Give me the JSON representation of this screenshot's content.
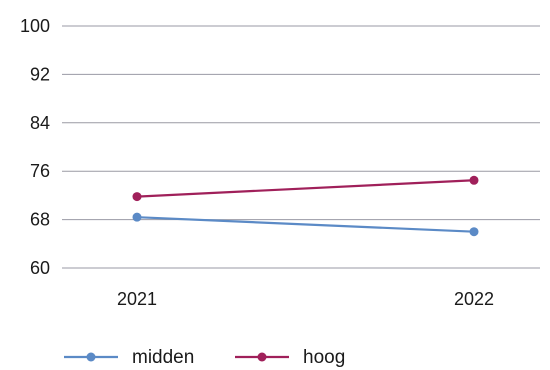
{
  "chart_data": {
    "type": "line",
    "title": "",
    "xlabel": "",
    "ylabel": "",
    "categories": [
      "2021",
      "2022"
    ],
    "ylim": [
      60,
      100
    ],
    "yticks": [
      60,
      68,
      76,
      84,
      92,
      100
    ],
    "grid": true,
    "legend_position": "bottom-left",
    "series": [
      {
        "name": "midden",
        "values": [
          68.4,
          66.0
        ],
        "color": "#5b8ac6"
      },
      {
        "name": "hoog",
        "values": [
          71.8,
          74.5
        ],
        "color": "#a0205a"
      }
    ]
  }
}
